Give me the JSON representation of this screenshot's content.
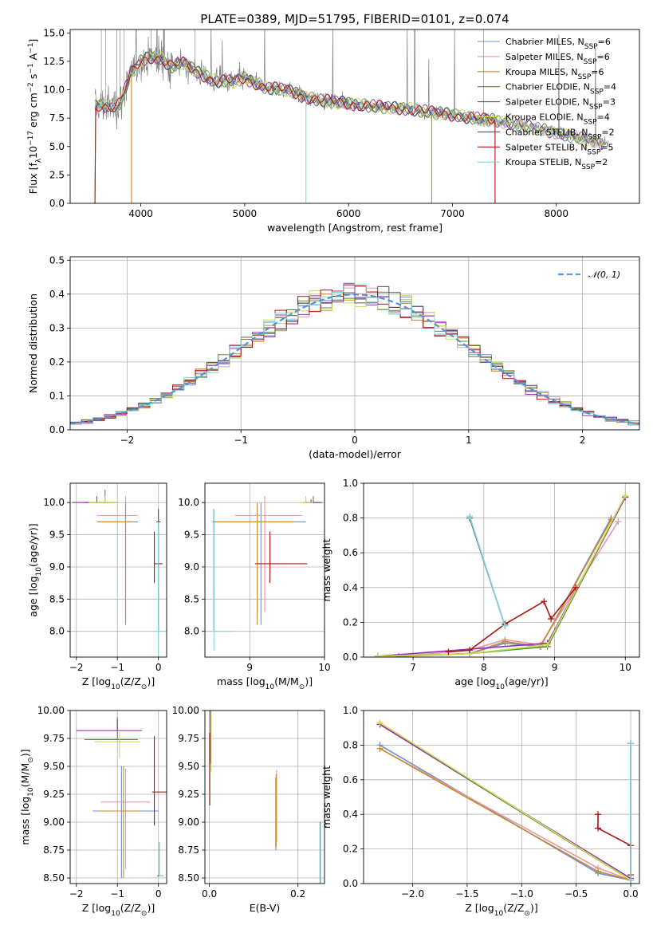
{
  "figure_title": "PLATE=0389, MJD=51795, FIBERID=0101, z=0.074",
  "colors": [
    "#6a8fd8",
    "#e39aa4",
    "#c98a2e",
    "#5a8a3a",
    "#9b30b8",
    "#c6e050",
    "#555555",
    "#b01515",
    "#7fd6dc"
  ],
  "chart_data": [
    {
      "type": "line",
      "title": "PLATE=0389, MJD=51795, FIBERID=0101, z=0.074",
      "xlabel": "wavelength [Angstrom, rest frame]",
      "ylabel_parts": [
        "Flux [f",
        "λ",
        "10",
        "−17",
        " erg cm",
        "−2",
        " s",
        "−1",
        " A",
        "−1",
        "]"
      ],
      "xlim": [
        3320,
        8800
      ],
      "ylim": [
        0,
        15.3
      ],
      "xticks": [
        4000,
        5000,
        6000,
        7000,
        8000
      ],
      "yticks": [
        0.0,
        2.5,
        5.0,
        7.5,
        10.0,
        12.5,
        15.0
      ],
      "grid": false,
      "legend_position": "top-right",
      "series": [
        {
          "name": "Chabrier MILES",
          "label_main": "Chabrier MILES, N",
          "label_sub": "SSP",
          "label_tail": "=6"
        },
        {
          "name": "Salpeter MILES",
          "label_main": "Salpeter MILES, N",
          "label_sub": "SSP",
          "label_tail": "=6"
        },
        {
          "name": "Kroupa MILES",
          "label_main": "Kroupa MILES, N",
          "label_sub": "SSP",
          "label_tail": "=6"
        },
        {
          "name": "Chabrier ELODIE",
          "label_main": "Chabrier ELODIE, N",
          "label_sub": "SSP",
          "label_tail": "=4"
        },
        {
          "name": "Salpeter ELODIE",
          "label_main": "Salpeter ELODIE, N",
          "label_sub": "SSP",
          "label_tail": "=3"
        },
        {
          "name": "Kroupa ELODIE",
          "label_main": "Kroupa ELODIE, N",
          "label_sub": "SSP",
          "label_tail": "=4"
        },
        {
          "name": "Chabrier STELIB",
          "label_main": "Chabrier STELIB, N",
          "label_sub": "SSP",
          "label_tail": "=2"
        },
        {
          "name": "Salpeter STELIB",
          "label_main": "Salpeter STELIB, N",
          "label_sub": "SSP",
          "label_tail": "=5"
        },
        {
          "name": "Kroupa STELIB",
          "label_main": "Kroupa STELIB, N",
          "label_sub": "SSP",
          "label_tail": "=2"
        }
      ],
      "continuum_model": {
        "x": [
          3560,
          3600,
          3700,
          3800,
          3900,
          4000,
          4100,
          4200,
          4300,
          4400,
          4500,
          4700,
          4900,
          5000,
          5200,
          5400,
          5600,
          5800,
          6000,
          6200,
          6400,
          6600,
          6800,
          7000,
          7200,
          7400,
          7600,
          7800,
          8000,
          8200,
          8400,
          8500
        ],
        "y": [
          8.5,
          8.7,
          8.5,
          8.8,
          11.3,
          12.5,
          12.9,
          12.7,
          12.0,
          12.4,
          11.8,
          10.8,
          10.7,
          11.0,
          10.2,
          10.0,
          9.3,
          9.0,
          8.8,
          8.6,
          8.4,
          8.3,
          8.0,
          7.8,
          7.5,
          7.3,
          7.0,
          6.6,
          6.2,
          5.8,
          5.4,
          5.2
        ]
      }
    },
    {
      "type": "line",
      "xlabel": "(data-model)/error",
      "ylabel": "Normed distribution",
      "xlim": [
        -2.5,
        2.5
      ],
      "ylim": [
        0,
        0.51
      ],
      "xticks": [
        -2,
        -1,
        0,
        1,
        2
      ],
      "yticks": [
        0.0,
        0.1,
        0.2,
        0.3,
        0.4,
        0.5
      ],
      "grid": true,
      "legend_position": "top-right",
      "reference_curve": {
        "name": "𝒩(0, 1)",
        "mean": 0,
        "sigma": 1
      }
    },
    {
      "type": "scatter",
      "xlabel_parts": [
        "Z [log",
        "10",
        "(Z/Z",
        "⊙",
        ")]"
      ],
      "ylabel_parts": [
        "age  [log",
        "10",
        "(age/yr)]"
      ],
      "xlim": [
        -2.15,
        0.2
      ],
      "ylim": [
        7.6,
        10.3
      ],
      "xticks": [
        -2,
        -1,
        0
      ],
      "yticks": [
        8.0,
        8.5,
        9.0,
        9.5,
        10.0
      ],
      "grid": true
    },
    {
      "type": "scatter",
      "xlabel_parts": [
        "mass [log",
        "10",
        "(M/M",
        "⊙",
        ")]"
      ],
      "xlim": [
        8.4,
        10.0
      ],
      "ylim": [
        7.6,
        10.3
      ],
      "xticks": [
        9,
        10
      ],
      "yticks": [
        8.0,
        8.5,
        9.0,
        9.5,
        10.0
      ],
      "grid": true
    },
    {
      "type": "line",
      "xlabel_parts": [
        "age  [log",
        "10",
        "(age/yr)]"
      ],
      "ylabel": "mass weight",
      "xlim": [
        6.3,
        10.2
      ],
      "ylim": [
        0,
        1.0
      ],
      "xticks": [
        7,
        8,
        9,
        10
      ],
      "yticks": [
        0.0,
        0.2,
        0.4,
        0.6,
        0.8,
        1.0
      ],
      "grid": true,
      "series": [
        {
          "name": "Chabrier MILES",
          "x": [
            6.8,
            7.8,
            8.3,
            8.8,
            9.8
          ],
          "y": [
            0.005,
            0.02,
            0.08,
            0.06,
            0.8
          ]
        },
        {
          "name": "Salpeter MILES",
          "x": [
            6.8,
            7.8,
            8.3,
            8.8,
            9.9
          ],
          "y": [
            0.005,
            0.04,
            0.1,
            0.07,
            0.78
          ]
        },
        {
          "name": "Kroupa MILES",
          "x": [
            6.8,
            7.8,
            8.3,
            8.8,
            9.8
          ],
          "y": [
            0.005,
            0.02,
            0.09,
            0.06,
            0.79
          ]
        },
        {
          "name": "Chabrier ELODIE",
          "x": [
            6.5,
            7.8,
            8.9,
            10.0
          ],
          "y": [
            0.005,
            0.02,
            0.06,
            0.92
          ]
        },
        {
          "name": "Salpeter ELODIE",
          "x": [
            6.5,
            8.9,
            10.0
          ],
          "y": [
            0.005,
            0.08,
            0.92
          ]
        },
        {
          "name": "Kroupa ELODIE",
          "x": [
            6.5,
            7.8,
            8.9,
            10.0
          ],
          "y": [
            0.005,
            0.02,
            0.07,
            0.93
          ]
        },
        {
          "name": "Chabrier STELIB",
          "x": [
            7.8,
            8.3
          ],
          "y": [
            0.8,
            0.18
          ]
        },
        {
          "name": "Salpeter STELIB",
          "x": [
            7.5,
            7.8,
            8.3,
            8.85,
            8.95,
            9.3
          ],
          "y": [
            0.03,
            0.04,
            0.19,
            0.32,
            0.22,
            0.4
          ]
        },
        {
          "name": "Kroupa STELIB",
          "x": [
            7.8,
            8.3
          ],
          "y": [
            0.81,
            0.18
          ]
        }
      ]
    },
    {
      "type": "scatter",
      "xlabel_parts": [
        "Z [log",
        "10",
        "(Z/Z",
        "⊙",
        ")]"
      ],
      "ylabel_parts": [
        "mass [log",
        "10",
        "(M/M",
        "⊙",
        ")]"
      ],
      "xlim": [
        -2.15,
        0.2
      ],
      "ylim": [
        8.45,
        10.0
      ],
      "xticks": [
        -2,
        -1,
        0
      ],
      "yticks": [
        8.5,
        8.75,
        9.0,
        9.25,
        9.5,
        9.75,
        10.0
      ],
      "grid": true
    },
    {
      "type": "scatter",
      "xlabel": "E(B-V)",
      "xlim": [
        -0.01,
        0.26
      ],
      "ylim": [
        8.45,
        10.0
      ],
      "xticks": [
        0.0,
        0.2
      ],
      "yticks": [
        8.5,
        8.75,
        9.0,
        9.25,
        9.5,
        9.75,
        10.0
      ],
      "grid": true,
      "series": [
        {
          "name": "Chabrier MILES",
          "x": [
            0.15
          ],
          "y": [
            9.05
          ]
        },
        {
          "name": "Salpeter MILES",
          "x": [
            0.152
          ],
          "y": [
            9.12
          ]
        },
        {
          "name": "Kroupa MILES",
          "x": [
            0.151
          ],
          "y": [
            9.08
          ]
        },
        {
          "name": "Chabrier ELODIE",
          "x": [
            0.002
          ],
          "y": [
            9.85
          ]
        },
        {
          "name": "Salpeter ELODIE",
          "x": [
            0.003
          ],
          "y": [
            9.82
          ]
        },
        {
          "name": "Kroupa ELODIE",
          "x": [
            0.004
          ],
          "y": [
            9.75
          ]
        },
        {
          "name": "Chabrier STELIB",
          "x": [
            0.25
          ],
          "y": [
            8.65
          ]
        },
        {
          "name": "Salpeter STELIB",
          "x": [
            0.001
          ],
          "y": [
            9.45
          ]
        },
        {
          "name": "Kroupa STELIB",
          "x": [
            0.251
          ],
          "y": [
            8.66
          ]
        }
      ]
    },
    {
      "type": "line",
      "xlabel_parts": [
        "Z [log",
        "10",
        "(Z/Z",
        "⊙",
        ")]"
      ],
      "ylabel": "mass weight",
      "xlim": [
        -2.45,
        0.08
      ],
      "ylim": [
        0,
        1.0
      ],
      "xticks": [
        -2.0,
        -1.5,
        -1.0,
        -0.5,
        0.0
      ],
      "yticks": [
        0.0,
        0.2,
        0.4,
        0.6,
        0.8,
        1.0
      ],
      "grid": true,
      "series": [
        {
          "name": "Chabrier MILES",
          "x": [
            -2.3,
            -0.3,
            0.0
          ],
          "y": [
            0.8,
            0.06,
            0.02
          ]
        },
        {
          "name": "Salpeter MILES",
          "x": [
            -2.3,
            -0.3,
            0.0
          ],
          "y": [
            0.78,
            0.09,
            0.02
          ]
        },
        {
          "name": "Kroupa MILES",
          "x": [
            -2.3,
            -0.3,
            0.0
          ],
          "y": [
            0.78,
            0.07,
            0.02
          ]
        },
        {
          "name": "Chabrier ELODIE",
          "x": [
            -2.3,
            0.0
          ],
          "y": [
            0.92,
            0.02
          ]
        },
        {
          "name": "Salpeter ELODIE",
          "x": [
            -2.3,
            0.0
          ],
          "y": [
            0.92,
            0.03
          ]
        },
        {
          "name": "Kroupa ELODIE",
          "x": [
            -2.3,
            0.0
          ],
          "y": [
            0.93,
            0.02
          ]
        },
        {
          "name": "Chabrier STELIB",
          "x": [
            0.0,
            0.0
          ],
          "y": [
            0.81,
            0.02
          ]
        },
        {
          "name": "Salpeter STELIB",
          "x": [
            -0.3,
            -0.3,
            0.0,
            0.0
          ],
          "y": [
            0.4,
            0.32,
            0.22,
            0.05
          ]
        },
        {
          "name": "Kroupa STELIB",
          "x": [
            0.0,
            0.0
          ],
          "y": [
            0.81,
            0.02
          ]
        }
      ]
    }
  ]
}
